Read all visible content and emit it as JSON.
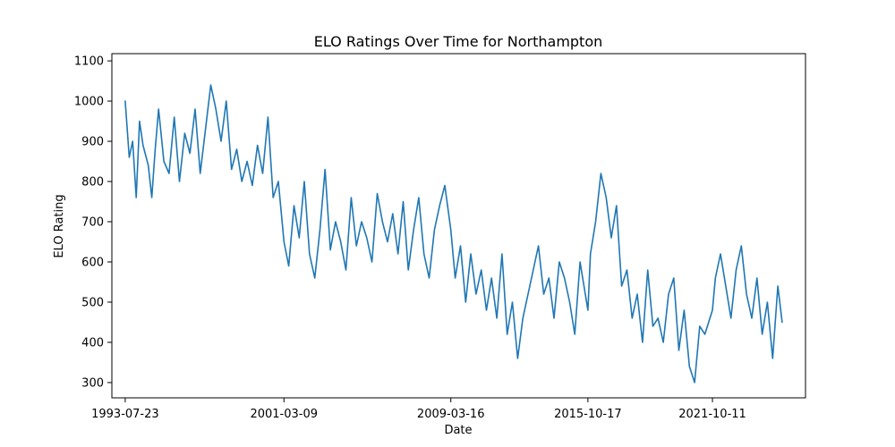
{
  "chart_data": {
    "type": "line",
    "title": "ELO Ratings Over Time for Northampton",
    "xlabel": "Date",
    "ylabel": "ELO Rating",
    "x_range": [
      "1992-12-01",
      "2026-04-01"
    ],
    "ylim": [
      262,
      1118
    ],
    "x_ticks": [
      "1993-07-23",
      "2001-03-09",
      "2009-03-16",
      "2015-10-17",
      "2021-10-11"
    ],
    "y_ticks": [
      300,
      400,
      500,
      600,
      700,
      800,
      900,
      1000,
      1100
    ],
    "grid": false,
    "line_color": "#1f77b4",
    "series": [
      {
        "x": [
          "1993-07-23",
          "1993-10-01",
          "1993-12-01",
          "1994-02-01",
          "1994-04-01",
          "1994-06-01",
          "1994-09-01",
          "1994-11-01",
          "1995-01-01",
          "1995-03-01",
          "1995-06-01",
          "1995-09-01",
          "1995-12-01",
          "1996-03-01",
          "1996-06-01",
          "1996-09-01",
          "1996-12-01",
          "1997-03-01",
          "1997-06-01",
          "1997-09-01",
          "1997-12-01",
          "1998-03-01",
          "1998-06-01",
          "1998-09-01",
          "1998-12-01",
          "1999-03-01",
          "1999-06-01",
          "1999-09-01",
          "1999-12-01",
          "2000-03-01",
          "2000-06-01",
          "2000-09-01",
          "2000-12-01",
          "2001-03-09",
          "2001-06-01",
          "2001-09-01",
          "2001-12-01",
          "2002-03-01",
          "2002-06-01",
          "2002-09-01",
          "2002-12-01",
          "2003-03-01",
          "2003-06-01",
          "2003-09-01",
          "2003-12-01",
          "2004-03-01",
          "2004-06-01",
          "2004-09-01",
          "2004-12-01",
          "2005-03-01",
          "2005-06-01",
          "2005-09-01",
          "2005-12-01",
          "2006-03-01",
          "2006-06-01",
          "2006-09-01",
          "2006-12-01",
          "2007-03-01",
          "2007-06-01",
          "2007-09-01",
          "2007-12-01",
          "2008-03-01",
          "2008-06-01",
          "2008-09-01",
          "2008-12-01",
          "2009-03-16",
          "2009-06-01",
          "2009-09-01",
          "2009-12-01",
          "2010-03-01",
          "2010-06-01",
          "2010-09-01",
          "2010-12-01",
          "2011-03-01",
          "2011-06-01",
          "2011-09-01",
          "2011-12-01",
          "2012-03-01",
          "2012-06-01",
          "2012-09-01",
          "2012-12-01",
          "2013-03-01",
          "2013-06-01",
          "2013-09-01",
          "2013-12-01",
          "2014-03-01",
          "2014-06-01",
          "2014-09-01",
          "2014-12-01",
          "2015-03-01",
          "2015-06-01",
          "2015-10-17",
          "2015-12-01",
          "2016-03-01",
          "2016-06-01",
          "2016-09-01",
          "2016-12-01",
          "2017-03-01",
          "2017-06-01",
          "2017-09-01",
          "2017-12-01",
          "2018-03-01",
          "2018-06-01",
          "2018-09-01",
          "2018-12-01",
          "2019-03-01",
          "2019-06-01",
          "2019-09-01",
          "2019-12-01",
          "2020-03-01",
          "2020-06-01",
          "2020-09-01",
          "2020-12-01",
          "2021-03-01",
          "2021-06-01",
          "2021-10-11",
          "2021-12-01",
          "2022-03-01",
          "2022-06-01",
          "2022-09-01",
          "2022-12-01",
          "2023-03-01",
          "2023-06-01",
          "2023-09-01",
          "2023-12-01",
          "2024-03-01",
          "2024-06-01",
          "2024-09-01",
          "2024-12-01",
          "2025-02-15"
        ],
        "y": [
          1000,
          860,
          900,
          760,
          950,
          890,
          840,
          760,
          880,
          980,
          850,
          820,
          960,
          800,
          920,
          870,
          980,
          820,
          930,
          1040,
          980,
          900,
          1000,
          830,
          880,
          800,
          850,
          790,
          890,
          820,
          960,
          760,
          800,
          650,
          590,
          740,
          660,
          800,
          620,
          560,
          680,
          830,
          630,
          700,
          650,
          580,
          760,
          640,
          700,
          660,
          600,
          770,
          700,
          650,
          720,
          620,
          750,
          580,
          680,
          760,
          620,
          560,
          680,
          740,
          790,
          680,
          560,
          640,
          500,
          620,
          520,
          580,
          480,
          560,
          460,
          620,
          420,
          500,
          360,
          460,
          520,
          580,
          640,
          520,
          560,
          460,
          600,
          560,
          500,
          420,
          600,
          480,
          620,
          700,
          820,
          760,
          660,
          740,
          540,
          580,
          460,
          520,
          400,
          580,
          440,
          460,
          400,
          520,
          560,
          380,
          480,
          340,
          300,
          440,
          420,
          480,
          560,
          620,
          540,
          460,
          580,
          640,
          520,
          460,
          560,
          420,
          500,
          360,
          540,
          450
        ]
      }
    ]
  }
}
